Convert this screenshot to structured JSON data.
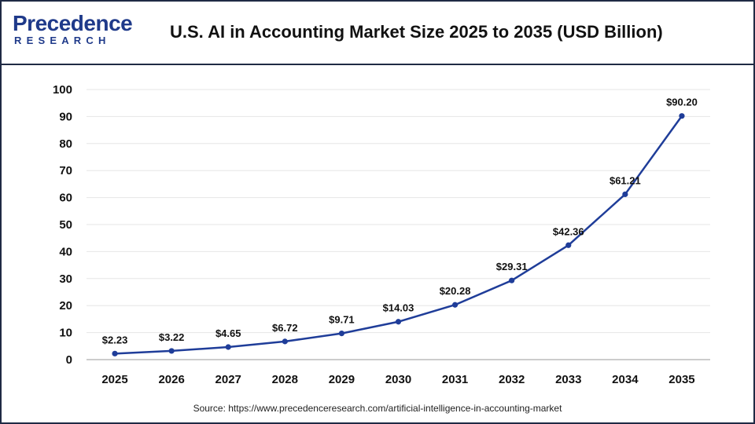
{
  "brand": {
    "name": "Precedence",
    "sub": "RESEARCH",
    "color": "#1f3a8a"
  },
  "title": "U.S. AI in Accounting Market Size 2025 to 2035 (USD Billion)",
  "source": "Source: https://www.precedenceresearch.com/artificial-intelligence-in-accounting-market",
  "chart_data": {
    "type": "line",
    "title": "U.S. AI in Accounting Market Size 2025 to 2035 (USD Billion)",
    "xlabel": "",
    "ylabel": "",
    "categories": [
      "2025",
      "2026",
      "2027",
      "2028",
      "2029",
      "2030",
      "2031",
      "2032",
      "2033",
      "2034",
      "2035"
    ],
    "series": [
      {
        "values": [
          2.23,
          3.22,
          4.65,
          6.72,
          9.71,
          14.03,
          20.28,
          29.31,
          42.36,
          61.21,
          90.2
        ],
        "labels": [
          "$2.23",
          "$3.22",
          "$4.65",
          "$6.72",
          "$9.71",
          "$14.03",
          "$20.28",
          "$29.31",
          "$42.36",
          "$61.21",
          "$90.20"
        ],
        "color": "#1f3d99"
      }
    ],
    "ylim": [
      0,
      100
    ],
    "yticks": [
      "0",
      "10",
      "20",
      "30",
      "40",
      "50",
      "60",
      "70",
      "80",
      "90",
      "100"
    ],
    "grid": true
  }
}
